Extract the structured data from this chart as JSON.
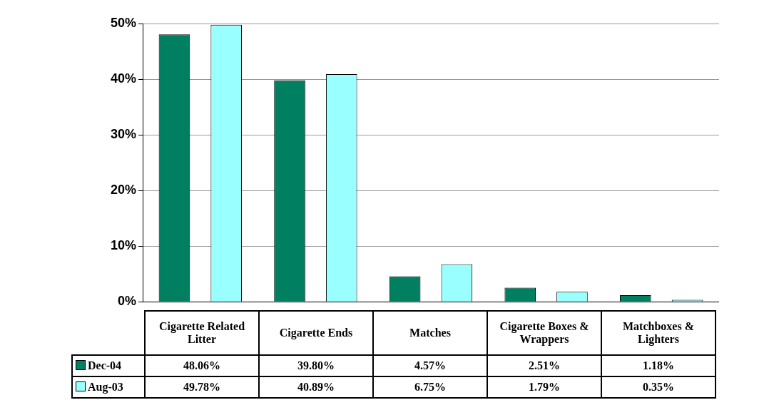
{
  "chart_data": {
    "type": "bar",
    "categories": [
      "Cigarette Related Litter",
      "Cigarette Ends",
      "Matches",
      "Cigarette Boxes & Wrappers",
      "Matchboxes & Lighters"
    ],
    "series": [
      {
        "name": "Dec-04",
        "color": "#008060",
        "values": [
          48.06,
          39.8,
          4.57,
          2.51,
          1.18
        ],
        "value_labels": [
          "48.06%",
          "39.80%",
          "4.57%",
          "2.51%",
          "1.18%"
        ]
      },
      {
        "name": "Aug-03",
        "color": "#99ffff",
        "values": [
          49.78,
          40.89,
          6.75,
          1.79,
          0.35
        ],
        "value_labels": [
          "49.78%",
          "40.89%",
          "6.75%",
          "1.79%",
          "0.35%"
        ]
      }
    ],
    "ylim": [
      0,
      50
    ],
    "yticks": [
      {
        "value": 0,
        "label": "0%"
      },
      {
        "value": 10,
        "label": "10%"
      },
      {
        "value": 20,
        "label": "20%"
      },
      {
        "value": 30,
        "label": "30%"
      },
      {
        "value": 40,
        "label": "40%"
      },
      {
        "value": 50,
        "label": "50%"
      }
    ],
    "grid": "y",
    "legend": "bottom"
  }
}
